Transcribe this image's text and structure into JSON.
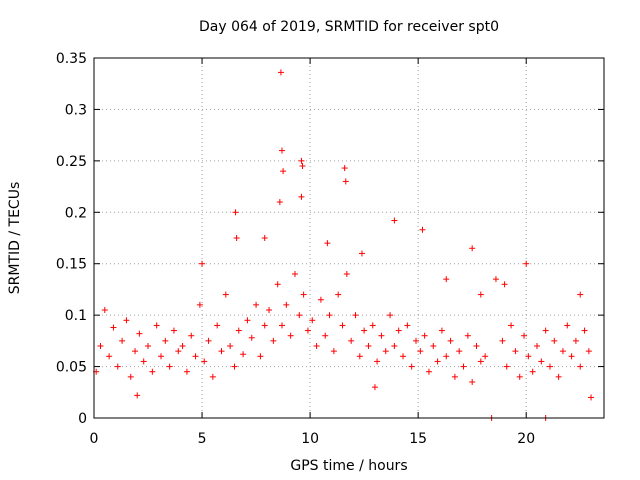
{
  "chart_data": {
    "type": "scatter",
    "title": "Day 064 of 2019, SRMTID for receiver spt0",
    "xlabel": "GPS time / hours",
    "ylabel": "SRMTID / TECUs",
    "xlim": [
      0,
      23.6
    ],
    "ylim": [
      0,
      0.35
    ],
    "x_ticks": [
      0,
      5,
      10,
      15,
      20
    ],
    "x_tick_labels": [
      "0",
      "5",
      "10",
      "15",
      "20"
    ],
    "y_ticks": [
      0,
      0.05,
      0.1,
      0.15,
      0.2,
      0.25,
      0.3,
      0.35
    ],
    "y_tick_labels": [
      "0",
      "0.05",
      "0.1",
      "0.15",
      "0.2",
      "0.25",
      "0.3",
      "0.35"
    ],
    "grid": true,
    "marker": "+",
    "color": "#ff0000",
    "series": [
      {
        "points": [
          [
            0.1,
            0.045
          ],
          [
            0.3,
            0.07
          ],
          [
            0.5,
            0.105
          ],
          [
            0.7,
            0.06
          ],
          [
            0.9,
            0.088
          ],
          [
            1.1,
            0.05
          ],
          [
            1.3,
            0.075
          ],
          [
            1.5,
            0.095
          ],
          [
            1.7,
            0.04
          ],
          [
            1.9,
            0.065
          ],
          [
            2.1,
            0.082
          ],
          [
            2.3,
            0.055
          ],
          [
            2.5,
            0.07
          ],
          [
            2.7,
            0.045
          ],
          [
            2.9,
            0.09
          ],
          [
            3.1,
            0.06
          ],
          [
            3.3,
            0.075
          ],
          [
            3.5,
            0.05
          ],
          [
            3.7,
            0.085
          ],
          [
            3.9,
            0.065
          ],
          [
            4.1,
            0.07
          ],
          [
            4.3,
            0.045
          ],
          [
            4.5,
            0.08
          ],
          [
            4.7,
            0.06
          ],
          [
            4.9,
            0.11
          ],
          [
            5.1,
            0.055
          ],
          [
            5.3,
            0.075
          ],
          [
            5.5,
            0.04
          ],
          [
            5.7,
            0.09
          ],
          [
            5.9,
            0.065
          ],
          [
            6.1,
            0.12
          ],
          [
            6.3,
            0.07
          ],
          [
            6.5,
            0.05
          ],
          [
            6.7,
            0.085
          ],
          [
            6.9,
            0.062
          ],
          [
            7.1,
            0.095
          ],
          [
            7.3,
            0.078
          ],
          [
            7.5,
            0.11
          ],
          [
            7.7,
            0.06
          ],
          [
            7.9,
            0.09
          ],
          [
            8.1,
            0.105
          ],
          [
            8.3,
            0.075
          ],
          [
            8.5,
            0.13
          ],
          [
            8.7,
            0.09
          ],
          [
            8.9,
            0.11
          ],
          [
            9.1,
            0.08
          ],
          [
            9.3,
            0.14
          ],
          [
            9.5,
            0.1
          ],
          [
            9.7,
            0.12
          ],
          [
            9.9,
            0.085
          ],
          [
            10.1,
            0.095
          ],
          [
            10.3,
            0.07
          ],
          [
            10.5,
            0.115
          ],
          [
            10.7,
            0.08
          ],
          [
            10.9,
            0.1
          ],
          [
            11.1,
            0.065
          ],
          [
            11.3,
            0.12
          ],
          [
            11.5,
            0.09
          ],
          [
            11.7,
            0.14
          ],
          [
            11.9,
            0.075
          ],
          [
            12.1,
            0.1
          ],
          [
            12.3,
            0.06
          ],
          [
            12.5,
            0.085
          ],
          [
            12.7,
            0.07
          ],
          [
            12.9,
            0.09
          ],
          [
            13.1,
            0.055
          ],
          [
            13.3,
            0.08
          ],
          [
            13.5,
            0.065
          ],
          [
            13.7,
            0.1
          ],
          [
            13.9,
            0.07
          ],
          [
            14.1,
            0.085
          ],
          [
            14.3,
            0.06
          ],
          [
            14.5,
            0.09
          ],
          [
            14.7,
            0.05
          ],
          [
            14.9,
            0.075
          ],
          [
            15.1,
            0.065
          ],
          [
            15.3,
            0.08
          ],
          [
            15.5,
            0.045
          ],
          [
            15.7,
            0.07
          ],
          [
            15.9,
            0.055
          ],
          [
            16.1,
            0.085
          ],
          [
            16.3,
            0.06
          ],
          [
            16.5,
            0.075
          ],
          [
            16.7,
            0.04
          ],
          [
            16.9,
            0.065
          ],
          [
            17.1,
            0.05
          ],
          [
            17.3,
            0.08
          ],
          [
            17.5,
            0.035
          ],
          [
            17.7,
            0.07
          ],
          [
            17.9,
            0.055
          ],
          [
            18.1,
            0.06
          ],
          [
            18.9,
            0.075
          ],
          [
            19.1,
            0.05
          ],
          [
            19.3,
            0.09
          ],
          [
            19.5,
            0.065
          ],
          [
            19.7,
            0.04
          ],
          [
            19.9,
            0.08
          ],
          [
            20.1,
            0.06
          ],
          [
            20.3,
            0.045
          ],
          [
            20.5,
            0.07
          ],
          [
            20.7,
            0.055
          ],
          [
            20.9,
            0.085
          ],
          [
            21.1,
            0.05
          ],
          [
            21.3,
            0.075
          ],
          [
            21.5,
            0.04
          ],
          [
            21.7,
            0.065
          ],
          [
            21.9,
            0.09
          ],
          [
            22.1,
            0.06
          ],
          [
            22.3,
            0.075
          ],
          [
            22.5,
            0.05
          ],
          [
            22.7,
            0.085
          ],
          [
            22.9,
            0.065
          ],
          [
            8.65,
            0.336
          ],
          [
            8.7,
            0.26
          ],
          [
            8.75,
            0.24
          ],
          [
            9.6,
            0.25
          ],
          [
            9.65,
            0.245
          ],
          [
            11.6,
            0.243
          ],
          [
            11.65,
            0.23
          ],
          [
            9.6,
            0.215
          ],
          [
            8.6,
            0.21
          ],
          [
            6.55,
            0.2
          ],
          [
            13.9,
            0.192
          ],
          [
            15.2,
            0.183
          ],
          [
            17.5,
            0.165
          ],
          [
            20.0,
            0.15
          ],
          [
            5.0,
            0.15
          ],
          [
            6.6,
            0.175
          ],
          [
            7.9,
            0.175
          ],
          [
            10.8,
            0.17
          ],
          [
            12.4,
            0.16
          ],
          [
            18.4,
            0.0
          ],
          [
            20.9,
            0.0
          ],
          [
            18.6,
            0.135
          ],
          [
            19.0,
            0.13
          ],
          [
            17.9,
            0.12
          ],
          [
            16.3,
            0.135
          ],
          [
            22.5,
            0.12
          ],
          [
            23.0,
            0.02
          ],
          [
            2.0,
            0.022
          ],
          [
            13.0,
            0.03
          ]
        ]
      }
    ]
  }
}
